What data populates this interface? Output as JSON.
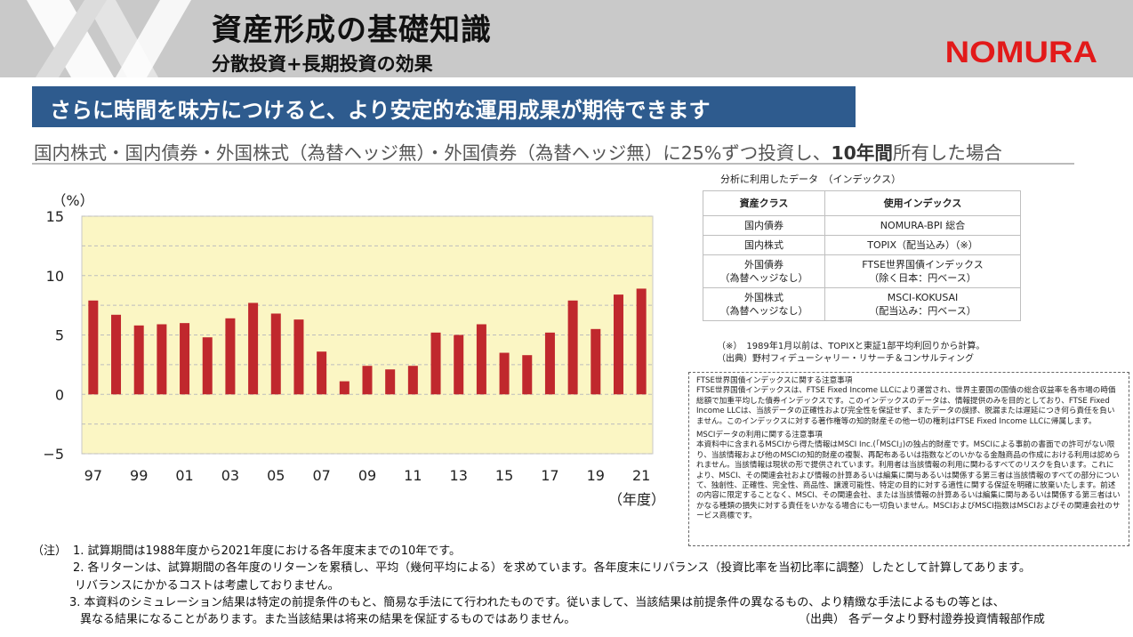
{
  "header": {
    "title": "資産形成の基礎知識",
    "subtitle": "分散投資+長期投資の効果",
    "brand": "NOMURA",
    "brand_color": "#e21a1a"
  },
  "banner": {
    "text": "さらに時間を味方につけると、より安定的な運用成果が期待できます",
    "color": "#2e5b8e"
  },
  "scenario": {
    "prefix": "国内株式・国内債券・外国株式（為替ヘッジ無）・外国債券（為替ヘッジ無）に25%ずつ投資し、",
    "bold": "10年間",
    "suffix": "所有した場合"
  },
  "chart_data": {
    "type": "bar",
    "ylabel": "（%）",
    "xlabel": "（年度）",
    "ylim": [
      -5,
      15
    ],
    "yticks": [
      15,
      10,
      5,
      0,
      -5
    ],
    "xtick_labels": [
      "97",
      "99",
      "01",
      "03",
      "05",
      "07",
      "09",
      "11",
      "13",
      "15",
      "17",
      "19",
      "21"
    ],
    "categories": [
      "1997",
      "1998",
      "1999",
      "2000",
      "2001",
      "2002",
      "2003",
      "2004",
      "2005",
      "2006",
      "2007",
      "2008",
      "2009",
      "2010",
      "2011",
      "2012",
      "2013",
      "2014",
      "2015",
      "2016",
      "2017",
      "2018",
      "2019",
      "2020",
      "2021"
    ],
    "values": [
      7.9,
      6.7,
      5.8,
      5.9,
      6.0,
      4.8,
      6.4,
      7.7,
      6.8,
      6.3,
      3.6,
      1.1,
      2.4,
      2.1,
      2.4,
      5.2,
      5.0,
      5.9,
      3.5,
      3.3,
      5.2,
      7.9,
      5.5,
      8.4,
      8.9
    ],
    "bar_color": "#c0282d",
    "plot_bg": "#fbf6c4",
    "grid": true
  },
  "data_table": {
    "caption": "分析に利用したデータ　（インデックス）",
    "headers": [
      "資産クラス",
      "使用インデックス"
    ],
    "rows": [
      {
        "asset": [
          "国内債券"
        ],
        "index": [
          "NOMURA-BPI 総合"
        ]
      },
      {
        "asset": [
          "国内株式"
        ],
        "index": [
          "TOPIX（配当込み）（※）"
        ]
      },
      {
        "asset": [
          "外国債券",
          "（為替ヘッジなし）"
        ],
        "index": [
          "FTSE世界国債インデックス",
          "（除く日本：円ベース）"
        ]
      },
      {
        "asset": [
          "外国株式",
          "（為替ヘッジなし）"
        ],
        "index": [
          "MSCI-KOKUSAI",
          "（配当込み：円ベース）"
        ]
      }
    ],
    "note1": "（※）　1989年1月以前は、TOPIXと東証1部平均利回りから計算。",
    "note2": "（出典）野村フィデューシャリー・リサーチ＆コンサルティング"
  },
  "notice": {
    "ftse_heading": "FTSE世界国債インデックスに関する注意事項",
    "ftse_body": "FTSE世界国債インデックスは、FTSE Fixed Income LLCにより運営され、世界主要国の国債の総合収益率を各市場の時価総額で加重平均した債券インデックスです。このインデックスのデータは、情報提供のみを目的としており、FTSE Fixed Income LLCは、当該データの正確性および完全性を保証せず、またデータの誤謬、脱漏または遅延につき何ら責任を負いません。このインデックスに対する著作権等の知的財産その他一切の権利はFTSE Fixed Income LLCに帰属します。",
    "msci_heading": "MSCIデータの利用に関する注意事項",
    "msci_body": "本資料中に含まれるMSCIから得た情報はMSCI Inc.(「MSCI」)の独占的財産です。MSCIによる事前の書面での許可がない限り、当該情報および他のMSCIの知的財産の複製、再配布あるいは指数などのいかなる金融商品の作成における利用は認められません。当該情報は現状の形で提供されています。利用者は当該情報の利用に関わるすべてのリスクを負います。これにより、MSCI、その関連会社および情報の計算あるいは編集に関与あるいは関係する第三者は当該情報のすべての部分について、独創性、正確性、完全性、商品性、譲渡可能性、特定の目的に対する適性に関する保証を明確に放棄いたします。前述の内容に限定することなく、MSCI、その関連会社、または当該情報の計算あるいは編集に関与あるいは関係する第三者はいかなる種類の損失に対する責任をいかなる場合にも一切負いません。MSCIおよびMSCI指数はMSCIおよびその関連会社のサービス商標です。"
  },
  "notes": {
    "label": "（注）",
    "n1": "1.  試算期間は1988年度から2021年度における各年度末までの10年です。",
    "n2": "2. 各リターンは、試算期間の各年度のリターンを累積し、平均（幾何平均による）を求めています。各年度末にリバランス（投資比率を当初比率に調整）したとして計算してあります。",
    "n2b": "リバランスにかかるコストは考慮しておりません。",
    "n3": "3.  本資料のシミュレーション結果は特定の前提条件のもと、簡易な手法にて行われたものです。従いまして、当該結果は前提条件の異なるもの、より精緻な手法によるもの等とは、",
    "n3b": "異なる結果になることがあります。また当該結果は将来の結果を保証するものではありません。",
    "source": "（出典）  各データより野村證券投資情報部作成"
  }
}
